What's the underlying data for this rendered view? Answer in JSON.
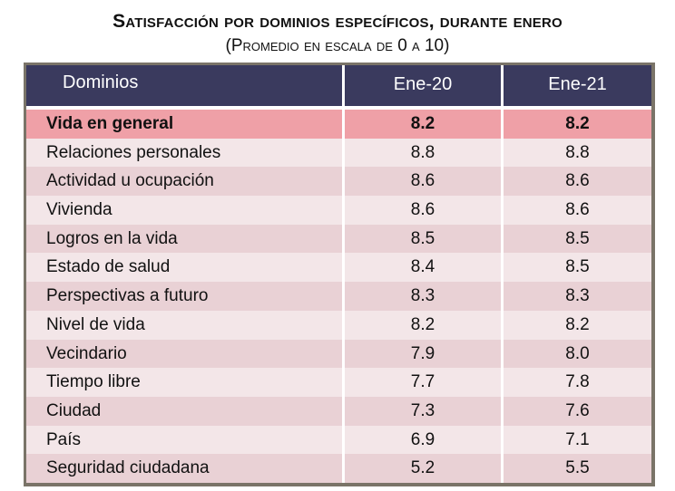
{
  "title": "Satisfacción por dominios específicos, durante enero",
  "subtitle": "(Promedio en escala de 0 a 10)",
  "colors": {
    "header": "#3a3a5e",
    "highlight": "#efa0a7",
    "row_dark": "#e9d1d5",
    "row_light": "#f3e6e8",
    "border": "#7a7468"
  },
  "chart_data": {
    "type": "table",
    "title": "Satisfacción por dominios específicos, durante enero",
    "subtitle": "(Promedio en escala de 0 a 10)",
    "columns": [
      "Dominios",
      "Ene-20",
      "Ene-21"
    ],
    "rows": [
      [
        "Vida en general",
        "8.2",
        "8.2"
      ],
      [
        "Relaciones personales",
        "8.8",
        "8.8"
      ],
      [
        "Actividad u ocupación",
        "8.6",
        "8.6"
      ],
      [
        "Vivienda",
        "8.6",
        "8.6"
      ],
      [
        "Logros en la vida",
        "8.5",
        "8.5"
      ],
      [
        "Estado de salud",
        "8.4",
        "8.5"
      ],
      [
        "Perspectivas a futuro",
        "8.3",
        "8.3"
      ],
      [
        "Nivel de vida",
        "8.2",
        "8.2"
      ],
      [
        "Vecindario",
        "7.9",
        "8.0"
      ],
      [
        "Tiempo libre",
        "7.7",
        "7.8"
      ],
      [
        "Ciudad",
        "7.3",
        "7.6"
      ],
      [
        "País",
        "6.9",
        "7.1"
      ],
      [
        "Seguridad ciudadana",
        "5.2",
        "5.5"
      ]
    ]
  }
}
